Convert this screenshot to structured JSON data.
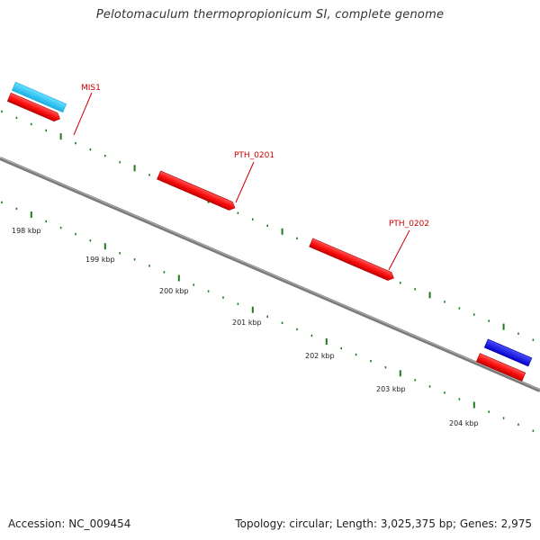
{
  "title": "Pelotomaculum thermopropionicum SI, complete genome",
  "accession": "Accession: NC_009454",
  "summary": "Topology: circular; Length: 3,025,375 bp; Genes: 2,975",
  "colors": {
    "backbone": "#8a8a8a",
    "forward_cds": "#ff1a1a",
    "reverse_mobile": "#33ccff",
    "reverse_cds": "#1a1aff",
    "tick": "#1f7a1f",
    "label": "#cc0000"
  },
  "gene_labels": [
    "MIS1",
    "PTH_0201",
    "PTH_0202"
  ],
  "kbp_labels": [
    "198 kbp",
    "199 kbp",
    "200 kbp",
    "201 kbp",
    "202 kbp",
    "203 kbp",
    "204 kbp"
  ]
}
